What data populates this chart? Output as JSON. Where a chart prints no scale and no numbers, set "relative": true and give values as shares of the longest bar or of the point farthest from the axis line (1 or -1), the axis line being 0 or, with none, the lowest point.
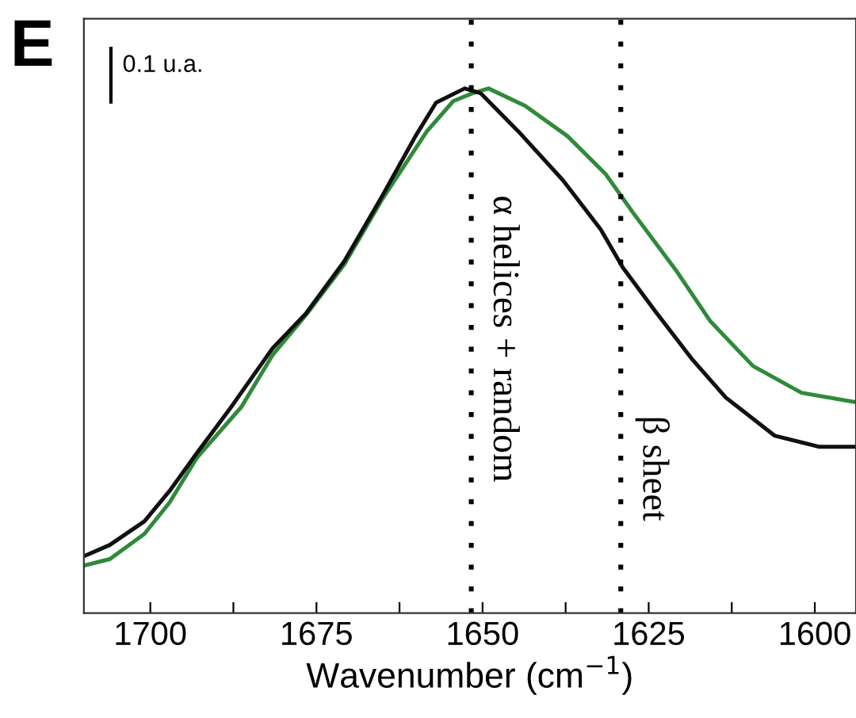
{
  "chart_data": {
    "type": "line",
    "relative": true,
    "xlabel": "Wavenumber (cm$^{−1}$)",
    "xlim": [
      1710,
      1593.8
    ],
    "xticks": [
      1700,
      {
        "value": 1687.5,
        "label": null
      },
      1675,
      {
        "value": 1662.5,
        "label": null
      },
      1650,
      {
        "value": 1637.5,
        "label": null
      },
      1625,
      {
        "value": 1612.5,
        "label": null
      },
      1600
    ],
    "tick_labels": "x",
    "grid": false,
    "marker": "none",
    "line_style": "solid",
    "annotations": [
      "E",
      "0.1 u.a."
    ],
    "ref_lines": [
      {
        "axis": "x",
        "value": 1651.7,
        "label": "α helices + random",
        "color": "#000000",
        "line_style": "dotted"
      },
      {
        "axis": "x",
        "value": 1629.2,
        "label": "β sheet",
        "color": "#000000",
        "line_style": "dotted"
      }
    ],
    "series": [
      {
        "color": "#2f8a3a",
        "x": [
          1709.9,
          1706.1,
          1700.9,
          1697.1,
          1693.0,
          1686.3,
          1681.6,
          1676.6,
          1670.8,
          1665.1,
          1658.4,
          1654.4,
          1651.5,
          1649.1,
          1643.6,
          1637.2,
          1631.5,
          1627.4,
          1620.7,
          1615.7,
          1609.3,
          1602.0,
          1593.8
        ],
        "values": [
          0.091,
          0.103,
          0.151,
          0.211,
          0.296,
          0.393,
          0.492,
          0.568,
          0.665,
          0.789,
          0.918,
          0.976,
          0.991,
          1,
          0.967,
          0.909,
          0.837,
          0.764,
          0.65,
          0.556,
          0.471,
          0.42,
          0.402
        ]
      },
      {
        "color": "#111111",
        "x": [
          1709.9,
          1706.1,
          1700.9,
          1697.1,
          1693.0,
          1688.0,
          1681.6,
          1676.6,
          1670.8,
          1665.1,
          1660.1,
          1657.0,
          1652.7,
          1650.3,
          1644.6,
          1637.9,
          1632.2,
          1628.9,
          1624.1,
          1618.4,
          1613.4,
          1606.0,
          1599.3,
          1593.8
        ],
        "values": [
          0.109,
          0.13,
          0.175,
          0.233,
          0.305,
          0.39,
          0.505,
          0.571,
          0.671,
          0.795,
          0.909,
          0.973,
          1,
          0.991,
          0.918,
          0.825,
          0.731,
          0.659,
          0.577,
          0.483,
          0.411,
          0.338,
          0.317,
          0.317
        ]
      }
    ]
  }
}
